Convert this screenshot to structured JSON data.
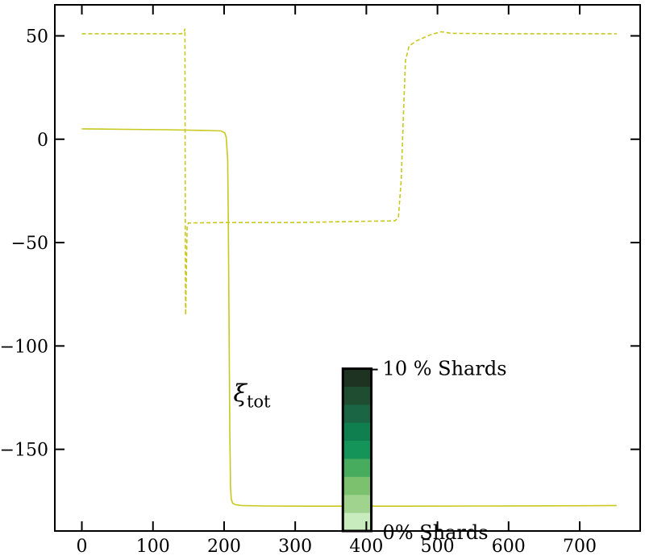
{
  "chart_data": {
    "type": "line",
    "title": "",
    "xlabel": "",
    "ylabel": "",
    "xlim": [
      -38,
      785
    ],
    "ylim": [
      -189.5,
      65
    ],
    "xticks": [
      0,
      100,
      200,
      300,
      400,
      500,
      600,
      700
    ],
    "yticks": [
      50,
      0,
      -50,
      -100,
      -150
    ],
    "xtick_labels": [
      "0",
      "100",
      "200",
      "300",
      "400",
      "500",
      "600",
      "700"
    ],
    "ytick_labels": [
      "50",
      "0",
      "−50",
      "−100",
      "−150"
    ],
    "grid": false,
    "series": [
      {
        "style": "solid",
        "color": "#c8c81e",
        "x": [
          0,
          60,
          120,
          150,
          180,
          196,
          201,
          203,
          205,
          206,
          207,
          208,
          209,
          210,
          212,
          216,
          225,
          260,
          320,
          420,
          560,
          700,
          752
        ],
        "y": [
          5,
          4.8,
          4.6,
          4.4,
          4.2,
          4,
          3,
          1,
          -10,
          -40,
          -90,
          -140,
          -168,
          -174,
          -176,
          -176.8,
          -177.2,
          -177.4,
          -177.5,
          -177.5,
          -177.4,
          -177.3,
          -177.2
        ]
      },
      {
        "style": "dashed",
        "color": "#c8c81e",
        "x": [
          0,
          70,
          140,
          144,
          145,
          145.2,
          145.8,
          146,
          148,
          150,
          200,
          300,
          400,
          440,
          445,
          449,
          452,
          455,
          460,
          470,
          490,
          505,
          520,
          600,
          700,
          752
        ],
        "y": [
          51,
          51,
          51,
          52,
          53.5,
          0,
          -80,
          -85,
          -42,
          -40.5,
          -40.3,
          -40.3,
          -39.7,
          -39.5,
          -38,
          -20,
          10,
          38,
          45,
          47.5,
          50.5,
          52,
          51.2,
          51,
          51,
          51
        ]
      }
    ],
    "annotation": {
      "text": "ξ",
      "subscript": "tot",
      "x": 213,
      "y": -127
    },
    "colorbar": {
      "x_range": [
        367,
        407
      ],
      "y_range": [
        -189.5,
        -111
      ],
      "label_top": "10 % Shards",
      "label_bottom": "0% Shards",
      "colors": [
        "#1e3322",
        "#1e4d32",
        "#1a6644",
        "#0f7f4f",
        "#149458",
        "#48ac5e",
        "#7bc16e",
        "#a0d38e",
        "#c8ecbe"
      ]
    }
  }
}
